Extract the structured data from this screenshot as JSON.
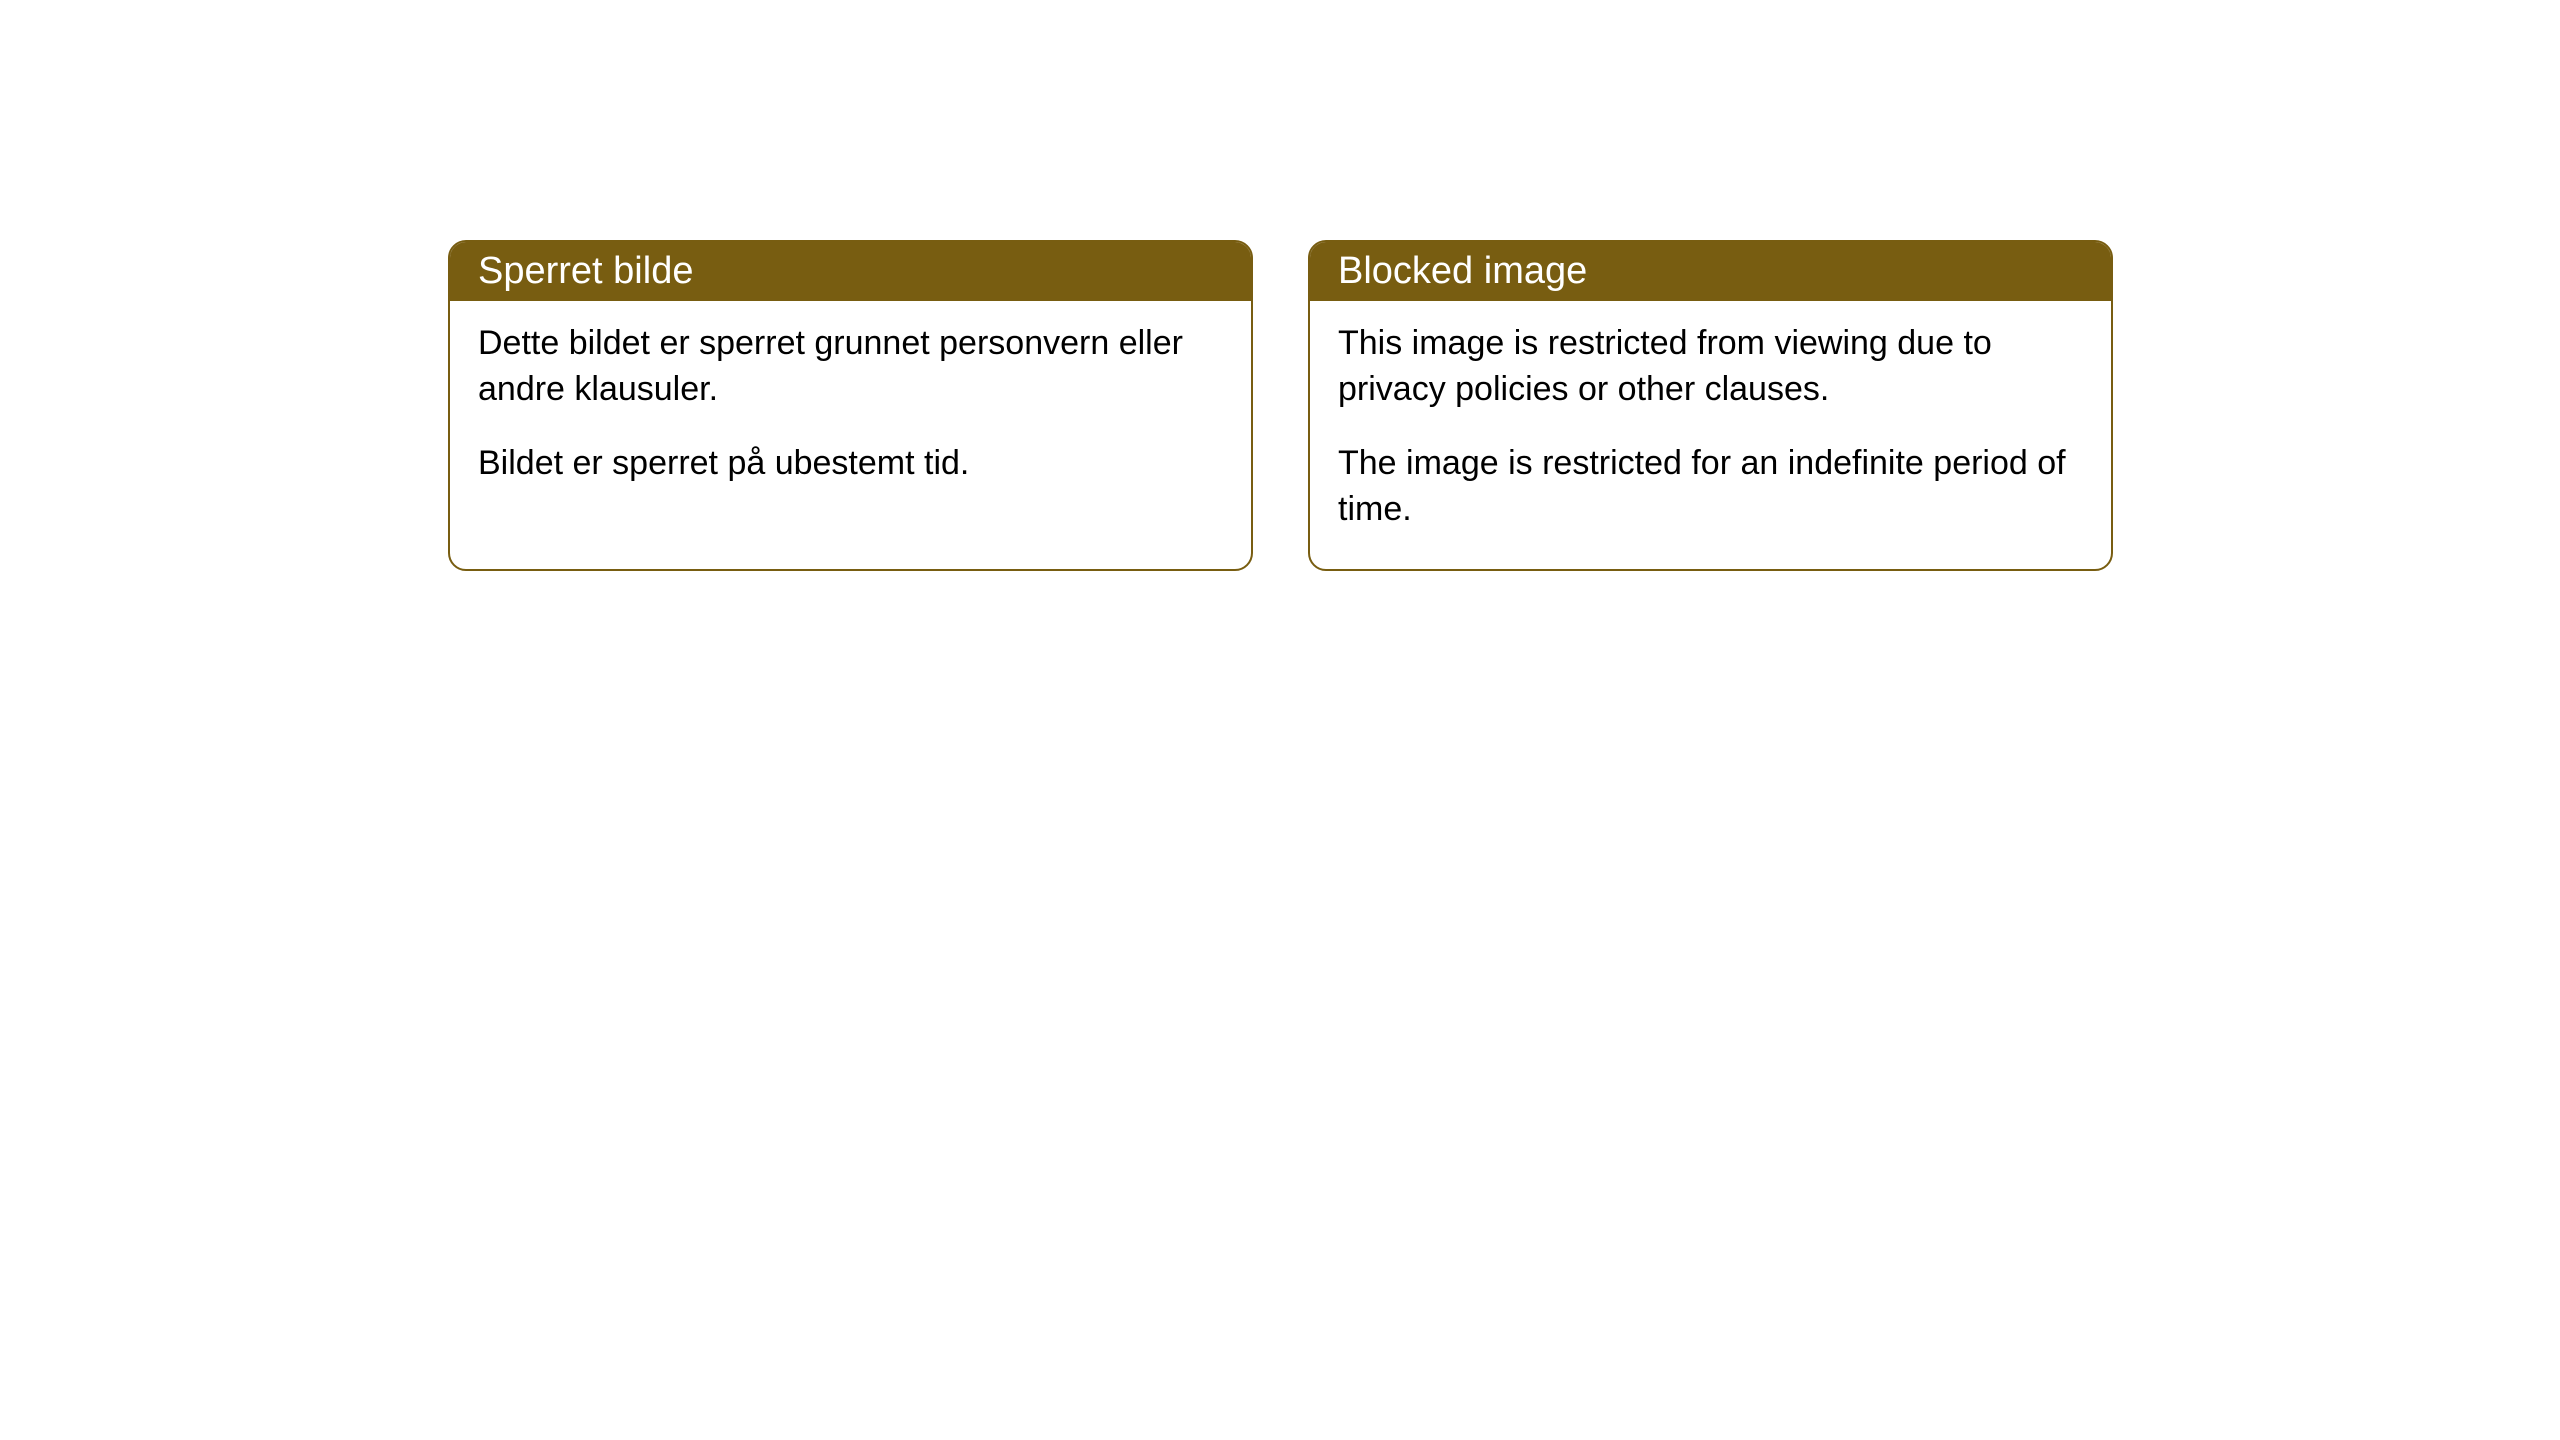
{
  "cards": [
    {
      "title": "Sperret bilde",
      "paragraph1": "Dette bildet er sperret grunnet personvern eller andre klausuler.",
      "paragraph2": "Bildet er sperret på ubestemt tid."
    },
    {
      "title": "Blocked image",
      "paragraph1": "This image is restricted from viewing due to privacy policies or other clauses.",
      "paragraph2": "The image is restricted for an indefinite period of time."
    }
  ],
  "style": {
    "header_bg_color": "#785d11",
    "header_text_color": "#ffffff",
    "border_color": "#785d11",
    "body_bg_color": "#ffffff",
    "body_text_color": "#000000",
    "border_radius": 18,
    "header_fontsize": 38,
    "body_fontsize": 34
  }
}
